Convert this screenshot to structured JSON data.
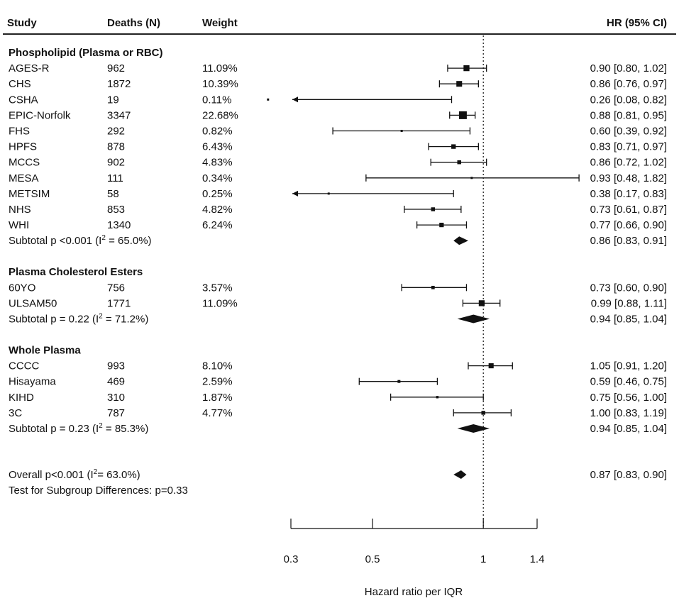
{
  "headers": {
    "study": "Study",
    "deaths": "Deaths (N)",
    "weight": "Weight",
    "hr": "HR (95% CI)"
  },
  "chart_data": {
    "type": "forest",
    "xlabel": "Hazard ratio per IQR",
    "x_scale": "log",
    "xlim": [
      0.3,
      1.4
    ],
    "x_ticks": [
      0.3,
      0.5,
      1,
      1.4
    ],
    "x_tick_labels": [
      "0.3",
      "0.5",
      "1",
      "1.4"
    ],
    "reference_line": 1,
    "groups": [
      {
        "name": "Phospholipid (Plasma or RBC)",
        "studies": [
          {
            "study": "AGES-R",
            "deaths": "962",
            "weight": "11.09%",
            "hr": 0.9,
            "lo": 0.8,
            "hi": 1.02,
            "ci_text": "0.90 [0.80, 1.02]"
          },
          {
            "study": "CHS",
            "deaths": "1872",
            "weight": "10.39%",
            "hr": 0.86,
            "lo": 0.76,
            "hi": 0.97,
            "ci_text": "0.86 [0.76, 0.97]"
          },
          {
            "study": "CSHA",
            "deaths": "19",
            "weight": "0.11%",
            "hr": 0.26,
            "lo": 0.08,
            "hi": 0.82,
            "ci_text": "0.26 [0.08, 0.82]"
          },
          {
            "study": "EPIC-Norfolk",
            "deaths": "3347",
            "weight": "22.68%",
            "hr": 0.88,
            "lo": 0.81,
            "hi": 0.95,
            "ci_text": "0.88 [0.81, 0.95]"
          },
          {
            "study": "FHS",
            "deaths": "292",
            "weight": "0.82%",
            "hr": 0.6,
            "lo": 0.39,
            "hi": 0.92,
            "ci_text": "0.60 [0.39, 0.92]"
          },
          {
            "study": "HPFS",
            "deaths": "878",
            "weight": "6.43%",
            "hr": 0.83,
            "lo": 0.71,
            "hi": 0.97,
            "ci_text": "0.83 [0.71, 0.97]"
          },
          {
            "study": "MCCS",
            "deaths": "902",
            "weight": "4.83%",
            "hr": 0.86,
            "lo": 0.72,
            "hi": 1.02,
            "ci_text": "0.86 [0.72, 1.02]"
          },
          {
            "study": "MESA",
            "deaths": "111",
            "weight": "0.34%",
            "hr": 0.93,
            "lo": 0.48,
            "hi": 1.82,
            "ci_text": "0.93 [0.48, 1.82]"
          },
          {
            "study": "METSIM",
            "deaths": "58",
            "weight": "0.25%",
            "hr": 0.38,
            "lo": 0.17,
            "hi": 0.83,
            "ci_text": "0.38 [0.17, 0.83]"
          },
          {
            "study": "NHS",
            "deaths": "853",
            "weight": "4.82%",
            "hr": 0.73,
            "lo": 0.61,
            "hi": 0.87,
            "ci_text": "0.73 [0.61, 0.87]"
          },
          {
            "study": "WHI",
            "deaths": "1340",
            "weight": "6.24%",
            "hr": 0.77,
            "lo": 0.66,
            "hi": 0.9,
            "ci_text": "0.77 [0.66, 0.90]"
          }
        ],
        "subtotal": {
          "prefix": "Subtotal p <0.001 (I",
          "sup": "2",
          "suffix": " = 65.0%)",
          "hr": 0.86,
          "lo": 0.83,
          "hi": 0.91,
          "ci_text": "0.86 [0.83, 0.91]"
        }
      },
      {
        "name": "Plasma Cholesterol Esters",
        "studies": [
          {
            "study": "60YO",
            "deaths": "756",
            "weight": "3.57%",
            "hr": 0.73,
            "lo": 0.6,
            "hi": 0.9,
            "ci_text": "0.73 [0.60, 0.90]"
          },
          {
            "study": "ULSAM50",
            "deaths": "1771",
            "weight": "11.09%",
            "hr": 0.99,
            "lo": 0.88,
            "hi": 1.11,
            "ci_text": "0.99 [0.88, 1.11]"
          }
        ],
        "subtotal": {
          "prefix": "Subtotal p = 0.22 (I",
          "sup": "2",
          "suffix": " = 71.2%)",
          "hr": 0.94,
          "lo": 0.85,
          "hi": 1.04,
          "ci_text": "0.94 [0.85, 1.04]"
        }
      },
      {
        "name": "Whole Plasma",
        "studies": [
          {
            "study": "CCCC",
            "deaths": "993",
            "weight": "8.10%",
            "hr": 1.05,
            "lo": 0.91,
            "hi": 1.2,
            "ci_text": "1.05 [0.91, 1.20]"
          },
          {
            "study": "Hisayama",
            "deaths": "469",
            "weight": "2.59%",
            "hr": 0.59,
            "lo": 0.46,
            "hi": 0.75,
            "ci_text": "0.59 [0.46, 0.75]"
          },
          {
            "study": "KIHD",
            "deaths": "310",
            "weight": "1.87%",
            "hr": 0.75,
            "lo": 0.56,
            "hi": 1.0,
            "ci_text": "0.75 [0.56, 1.00]"
          },
          {
            "study": "3C",
            "deaths": "787",
            "weight": "4.77%",
            "hr": 1.0,
            "lo": 0.83,
            "hi": 1.19,
            "ci_text": "1.00 [0.83, 1.19]"
          }
        ],
        "subtotal": {
          "prefix": "Subtotal p = 0.23 (I",
          "sup": "2",
          "suffix": " = 85.3%)",
          "hr": 0.94,
          "lo": 0.85,
          "hi": 1.04,
          "ci_text": "0.94 [0.85, 1.04]"
        }
      }
    ],
    "overall": {
      "prefix": "Overall p<0.001 (I",
      "sup": "2",
      "suffix": "= 63.0%)",
      "hr": 0.87,
      "lo": 0.83,
      "hi": 0.9,
      "ci_text": "0.87 [0.83, 0.90]"
    },
    "subgroup_test": "Test for Subgroup Differences: p=0.33"
  }
}
